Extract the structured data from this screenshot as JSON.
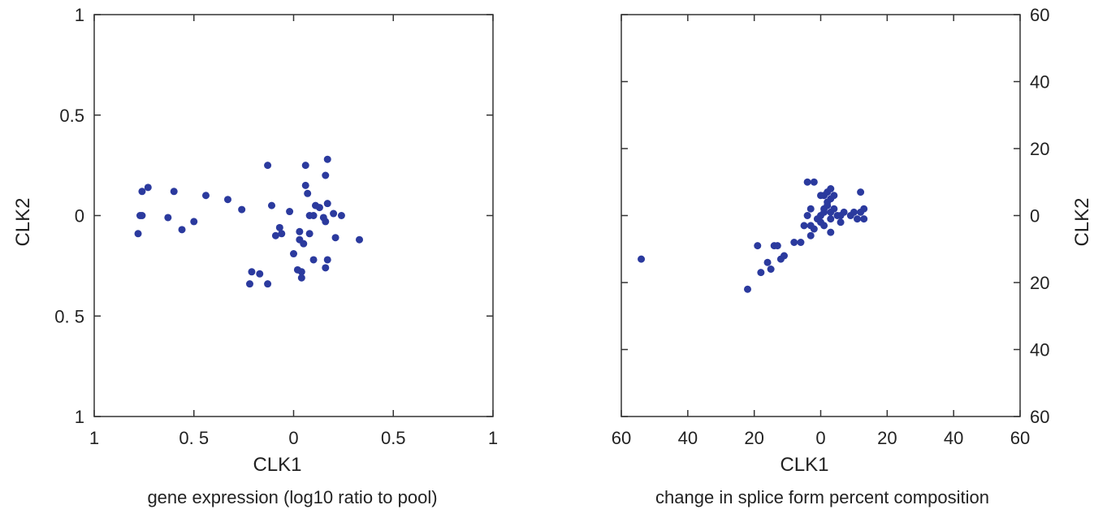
{
  "chart_data": [
    {
      "type": "scatter",
      "caption": "gene expression (log10 ratio to pool)",
      "xlabel": "CLK1",
      "ylabel": "CLK2",
      "xlim": [
        -1,
        1
      ],
      "ylim": [
        -1,
        1
      ],
      "x_tick_labels": [
        "1",
        "0. 5",
        "0",
        "0.5",
        "1"
      ],
      "x_tick_values": [
        -1,
        -0.5,
        0,
        0.5,
        1
      ],
      "y_tick_labels": [
        "1",
        "0.5",
        "0",
        "0. 5",
        "1"
      ],
      "y_tick_values": [
        1,
        0.5,
        0,
        -0.5,
        -1
      ],
      "grid": false,
      "legend": "none",
      "marker_color": "#2b3a9e",
      "points": [
        [
          -0.78,
          -0.09
        ],
        [
          -0.77,
          0.0
        ],
        [
          -0.76,
          0.12
        ],
        [
          -0.76,
          0.0
        ],
        [
          -0.73,
          0.14
        ],
        [
          -0.63,
          -0.01
        ],
        [
          -0.6,
          0.12
        ],
        [
          -0.56,
          -0.07
        ],
        [
          -0.5,
          -0.03
        ],
        [
          -0.44,
          0.1
        ],
        [
          -0.33,
          0.08
        ],
        [
          -0.26,
          0.03
        ],
        [
          -0.22,
          -0.34
        ],
        [
          -0.21,
          -0.28
        ],
        [
          -0.17,
          -0.29
        ],
        [
          -0.13,
          -0.34
        ],
        [
          -0.13,
          0.25
        ],
        [
          -0.11,
          0.05
        ],
        [
          -0.09,
          -0.1
        ],
        [
          -0.07,
          -0.06
        ],
        [
          -0.06,
          -0.09
        ],
        [
          -0.02,
          0.02
        ],
        [
          0.0,
          -0.19
        ],
        [
          0.02,
          -0.27
        ],
        [
          0.03,
          -0.08
        ],
        [
          0.03,
          -0.12
        ],
        [
          0.04,
          -0.28
        ],
        [
          0.04,
          -0.31
        ],
        [
          0.05,
          -0.14
        ],
        [
          0.06,
          0.15
        ],
        [
          0.06,
          0.25
        ],
        [
          0.07,
          0.11
        ],
        [
          0.08,
          0.0
        ],
        [
          0.08,
          -0.09
        ],
        [
          0.1,
          0.0
        ],
        [
          0.1,
          -0.22
        ],
        [
          0.11,
          0.05
        ],
        [
          0.13,
          0.04
        ],
        [
          0.15,
          -0.01
        ],
        [
          0.16,
          0.2
        ],
        [
          0.16,
          -0.26
        ],
        [
          0.16,
          -0.03
        ],
        [
          0.17,
          0.28
        ],
        [
          0.17,
          -0.22
        ],
        [
          0.17,
          0.06
        ],
        [
          0.2,
          0.01
        ],
        [
          0.21,
          -0.11
        ],
        [
          0.24,
          0.0
        ],
        [
          0.33,
          -0.12
        ]
      ]
    },
    {
      "type": "scatter",
      "caption": "change in splice form percent composition",
      "xlabel": "CLK1",
      "ylabel": "CLK2",
      "xlim": [
        -60,
        60
      ],
      "ylim": [
        -60,
        60
      ],
      "x_tick_labels": [
        "60",
        "40",
        "20",
        "0",
        "20",
        "40",
        "60"
      ],
      "x_tick_values": [
        -60,
        -40,
        -20,
        0,
        20,
        40,
        60
      ],
      "y_tick_labels": [
        "60",
        "40",
        "20",
        "0",
        "20",
        "40",
        "60"
      ],
      "y_tick_values": [
        60,
        40,
        20,
        0,
        -20,
        -40,
        -60
      ],
      "grid": false,
      "legend": "none",
      "marker_color": "#2b3a9e",
      "points": [
        [
          -54,
          -13
        ],
        [
          -22,
          -22
        ],
        [
          -19,
          -9
        ],
        [
          -18,
          -17
        ],
        [
          -16,
          -14
        ],
        [
          -15,
          -16
        ],
        [
          -14,
          -9
        ],
        [
          -13,
          -9
        ],
        [
          -12,
          -13
        ],
        [
          -11,
          -12
        ],
        [
          -8,
          -8
        ],
        [
          -6,
          -8
        ],
        [
          -5,
          -3
        ],
        [
          -4,
          0
        ],
        [
          -4,
          10
        ],
        [
          -3,
          -6
        ],
        [
          -3,
          2
        ],
        [
          -3,
          -3
        ],
        [
          -2,
          10
        ],
        [
          -2,
          -4
        ],
        [
          -1,
          -1
        ],
        [
          0,
          0
        ],
        [
          0,
          6
        ],
        [
          0,
          -2
        ],
        [
          1,
          1
        ],
        [
          1,
          -3
        ],
        [
          1,
          6
        ],
        [
          1,
          2
        ],
        [
          2,
          7
        ],
        [
          2,
          4
        ],
        [
          2,
          3
        ],
        [
          3,
          8
        ],
        [
          3,
          -1
        ],
        [
          3,
          1
        ],
        [
          3,
          5
        ],
        [
          3,
          -5
        ],
        [
          4,
          6
        ],
        [
          4,
          2
        ],
        [
          5,
          0
        ],
        [
          6,
          0
        ],
        [
          6,
          -2
        ],
        [
          7,
          1
        ],
        [
          9,
          0
        ],
        [
          10,
          1
        ],
        [
          11,
          -1
        ],
        [
          12,
          7
        ],
        [
          12,
          1
        ],
        [
          13,
          2
        ],
        [
          13,
          -1
        ]
      ]
    }
  ]
}
